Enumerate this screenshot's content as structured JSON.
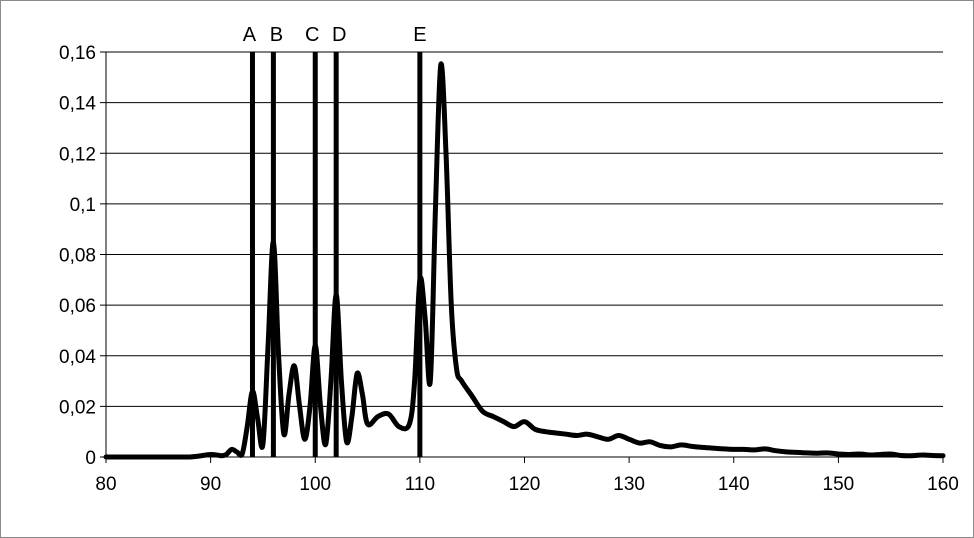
{
  "chart_data": {
    "type": "line",
    "title": "",
    "xlabel": "",
    "ylabel": "",
    "xlim": [
      80,
      160
    ],
    "ylim": [
      0,
      0.16
    ],
    "x_ticks": [
      80,
      90,
      100,
      110,
      120,
      130,
      140,
      150,
      160
    ],
    "x_tick_labels": [
      "80",
      "90",
      "100",
      "110",
      "120",
      "130",
      "140",
      "150",
      "160"
    ],
    "y_ticks": [
      0,
      0.02,
      0.04,
      0.06,
      0.08,
      0.1,
      0.12,
      0.14,
      0.16
    ],
    "y_tick_labels": [
      "0",
      "0,02",
      "0,04",
      "0,06",
      "0,08",
      "0,1",
      "0,12",
      "0,14",
      "0,16"
    ],
    "grid": "horizontal",
    "legend": "none",
    "line_color": "#000000",
    "markers": [
      {
        "label": "A",
        "x": 94
      },
      {
        "label": "B",
        "x": 96
      },
      {
        "label": "C",
        "x": 100
      },
      {
        "label": "D",
        "x": 102
      },
      {
        "label": "E",
        "x": 110
      }
    ],
    "series": [
      {
        "x": [
          80,
          85,
          88,
          90,
          91,
          91.5,
          92,
          92.5,
          93,
          93.5,
          94,
          94.5,
          95,
          95.5,
          96,
          96.5,
          97,
          97.5,
          98,
          98.5,
          99,
          99.5,
          100,
          100.5,
          101,
          101.5,
          102,
          102.5,
          103,
          103.5,
          104,
          104.5,
          105,
          106,
          107,
          108,
          109,
          109.5,
          110,
          110.5,
          111,
          111.5,
          112,
          112.5,
          113,
          113.5,
          114,
          115,
          116,
          117,
          118,
          119,
          120,
          121,
          122,
          123,
          124,
          125,
          126,
          127,
          128,
          129,
          130,
          131,
          132,
          133,
          134,
          135,
          136,
          137,
          138,
          139,
          140,
          141,
          142,
          143,
          144,
          145,
          146,
          147,
          148,
          149,
          150,
          151,
          152,
          153,
          154,
          155,
          156,
          157,
          158,
          159,
          160
        ],
        "y": [
          0,
          0,
          0,
          0.001,
          0.0005,
          0.001,
          0.003,
          0.002,
          0.001,
          0.012,
          0.026,
          0.015,
          0.005,
          0.045,
          0.085,
          0.04,
          0.009,
          0.025,
          0.036,
          0.02,
          0.007,
          0.02,
          0.044,
          0.02,
          0.005,
          0.03,
          0.064,
          0.03,
          0.006,
          0.016,
          0.033,
          0.025,
          0.013,
          0.016,
          0.017,
          0.012,
          0.013,
          0.03,
          0.07,
          0.055,
          0.03,
          0.1,
          0.155,
          0.12,
          0.06,
          0.035,
          0.03,
          0.024,
          0.018,
          0.016,
          0.014,
          0.012,
          0.014,
          0.011,
          0.01,
          0.0095,
          0.009,
          0.0085,
          0.009,
          0.008,
          0.007,
          0.0085,
          0.007,
          0.0055,
          0.006,
          0.0045,
          0.004,
          0.0048,
          0.0042,
          0.0038,
          0.0035,
          0.0032,
          0.003,
          0.003,
          0.0028,
          0.0032,
          0.0025,
          0.002,
          0.0018,
          0.0016,
          0.0015,
          0.0016,
          0.0012,
          0.001,
          0.0012,
          0.0008,
          0.001,
          0.0012,
          0.0006,
          0.0005,
          0.0008,
          0.0006,
          0.0005
        ]
      }
    ]
  }
}
